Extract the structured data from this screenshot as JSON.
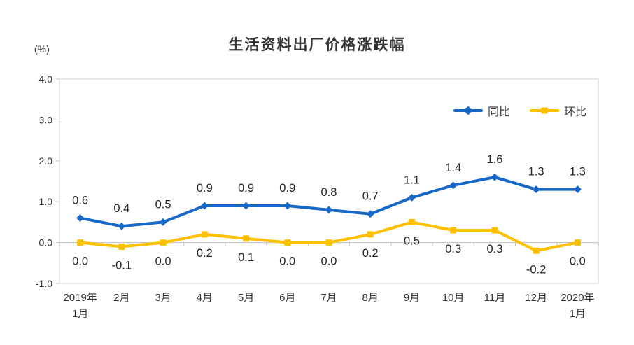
{
  "header": {
    "unit_label": "(%)"
  },
  "colors": {
    "plot_border": "#dcdcdc",
    "zero_axis": "#c9c9c9",
    "tick_mark": "#bdbdbd",
    "tick_text": "#333333",
    "data_label_text": "#262626",
    "yoy_blue": "#1868c8",
    "mom_gold": "#ffc000"
  },
  "chart_data": {
    "type": "line",
    "title": "生活资料出厂价格涨跌幅",
    "unit": "(%)",
    "categories": [
      "2019年\n1月",
      "2月",
      "3月",
      "4月",
      "5月",
      "6月",
      "7月",
      "8月",
      "9月",
      "10月",
      "11月",
      "12月",
      "2020年\n1月"
    ],
    "series": [
      {
        "name": "同比",
        "color": "#1868c8",
        "marker": "diamond",
        "label_position": "above",
        "values": [
          0.6,
          0.4,
          0.5,
          0.9,
          0.9,
          0.9,
          0.8,
          0.7,
          1.1,
          1.4,
          1.6,
          1.3,
          1.3
        ]
      },
      {
        "name": "环比",
        "color": "#ffc000",
        "marker": "square",
        "label_position": "below",
        "values": [
          0.0,
          -0.1,
          0.0,
          0.2,
          0.1,
          0.0,
          0.0,
          0.2,
          0.5,
          0.3,
          0.3,
          -0.2,
          0.0
        ]
      }
    ],
    "ylim": [
      -1.0,
      4.0
    ],
    "yticks": [
      "4.0",
      "3.0",
      "2.0",
      "1.0",
      "0.0",
      "-1.0"
    ],
    "grid": {
      "border": true,
      "zero_line": true,
      "interior_gridlines": false
    },
    "legend_position": "inside-top-right"
  }
}
